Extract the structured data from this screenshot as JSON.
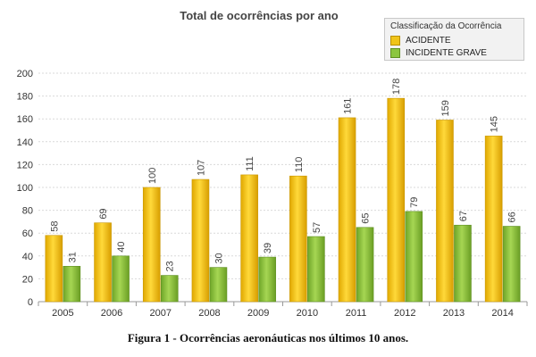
{
  "chart_data": {
    "type": "bar",
    "title": "Total de ocorrências por ano",
    "categories": [
      "2005",
      "2006",
      "2007",
      "2008",
      "2009",
      "2010",
      "2011",
      "2012",
      "2013",
      "2014"
    ],
    "series": [
      {
        "name": "ACIDENTE",
        "color": "#f0c419",
        "values": [
          58,
          69,
          100,
          107,
          111,
          110,
          161,
          178,
          159,
          145
        ]
      },
      {
        "name": "INCIDENTE GRAVE",
        "color": "#8cc63f",
        "values": [
          31,
          40,
          23,
          30,
          39,
          57,
          65,
          79,
          67,
          66
        ]
      }
    ],
    "legend_title": "Classificação da Ocorrência",
    "legend_position": "top-right",
    "ylim": [
      0,
      200
    ],
    "yticks": [
      0,
      20,
      40,
      60,
      80,
      100,
      120,
      140,
      160,
      180,
      200
    ],
    "grid": true,
    "xlabel": "",
    "ylabel": ""
  },
  "caption": "Figura 1 - Ocorrências aeronáuticas nos últimos 10 anos."
}
